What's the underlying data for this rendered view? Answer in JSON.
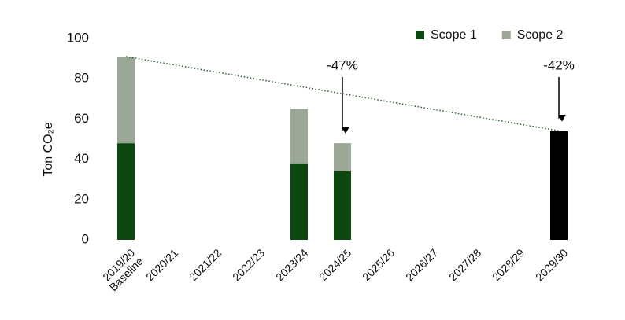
{
  "chart_data": {
    "type": "bar",
    "stacked": true,
    "y_label": "Ton CO₂e",
    "categories": [
      "2019/20\nBaseline",
      "2020/21",
      "2021/22",
      "2022/23",
      "2023/24",
      "2024/25",
      "2025/26",
      "2026/27",
      "2027/28",
      "2028/29",
      "2029/30"
    ],
    "series": [
      {
        "name": "Scope 1",
        "color": "#0b470f",
        "values": [
          48,
          null,
          null,
          null,
          38,
          34,
          null,
          null,
          null,
          null,
          null
        ]
      },
      {
        "name": "Scope 2",
        "color": "#9aa895",
        "values": [
          43,
          null,
          null,
          null,
          27,
          14,
          null,
          null,
          null,
          null,
          null
        ]
      }
    ],
    "target": {
      "color": "#000000",
      "values": [
        null,
        null,
        null,
        null,
        null,
        null,
        null,
        null,
        null,
        null,
        54
      ]
    },
    "annotations": [
      {
        "text": "-47%",
        "category": "2024/25"
      },
      {
        "text": "-42%",
        "category": "2029/30"
      }
    ],
    "ylim": [
      0,
      100
    ],
    "yticks": [
      0,
      20,
      40,
      60,
      80,
      100
    ],
    "legend": "top-right"
  }
}
